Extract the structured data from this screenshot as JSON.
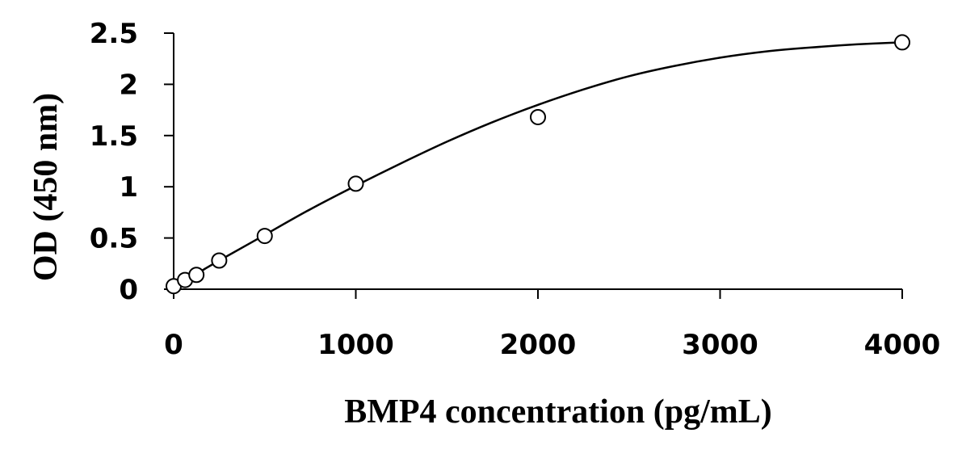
{
  "chart_data": {
    "type": "scatter",
    "title": "",
    "xlabel": "BMP4 concentration (pg/mL)",
    "ylabel": "OD (450 nm)",
    "xlim": [
      0,
      4000
    ],
    "ylim": [
      0,
      2.5
    ],
    "x_ticks": [
      "0",
      "1000",
      "2000",
      "3000",
      "4000"
    ],
    "y_ticks": [
      "0",
      "0.5",
      "1",
      "1.5",
      "2",
      "2.5"
    ],
    "grid": false,
    "legend": "none",
    "series": [
      {
        "marker": "open-circle",
        "x": [
          0,
          62.5,
          125,
          250,
          500,
          1000,
          2000,
          4000
        ],
        "y": [
          0.03,
          0.09,
          0.14,
          0.28,
          0.52,
          1.03,
          1.68,
          2.41
        ]
      }
    ],
    "fit_curve": {
      "style": "smooth-line",
      "color": "#000000",
      "x": [
        0,
        125,
        250,
        500,
        750,
        1000,
        1250,
        1500,
        1750,
        2000,
        2250,
        2500,
        2750,
        3000,
        3250,
        3500,
        3750,
        4000
      ],
      "y": [
        0.02,
        0.15,
        0.28,
        0.53,
        0.78,
        1.01,
        1.23,
        1.44,
        1.63,
        1.8,
        1.95,
        2.08,
        2.18,
        2.26,
        2.32,
        2.36,
        2.39,
        2.41
      ]
    }
  }
}
